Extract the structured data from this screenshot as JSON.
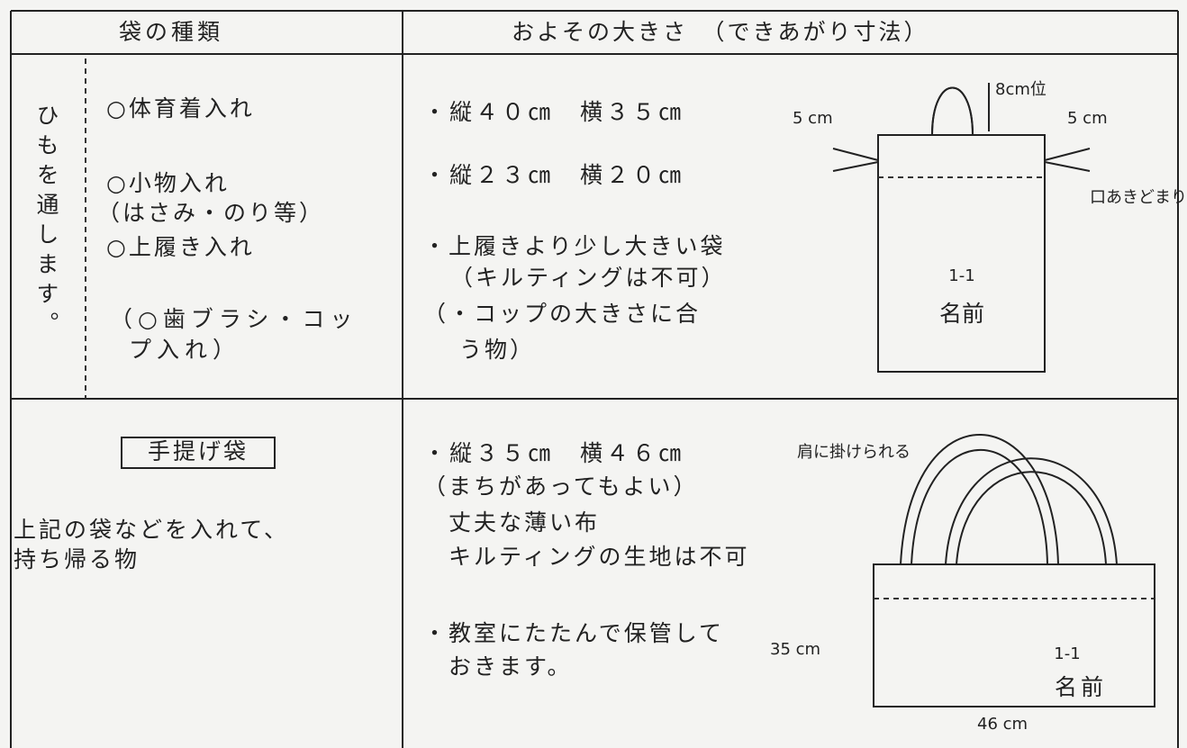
{
  "table": {
    "headers": [
      "袋の種類",
      "およその大きさ　（できあがり寸法）"
    ],
    "rows": [
      {
        "note": "ひもを通します。",
        "kinds": [
          "○体育着入れ",
          "○小物入れ",
          "（はさみ・のり等）",
          "○上履き入れ",
          "（○歯ブラシ・コッ",
          "プ入れ）"
        ],
        "sizes": [
          "・縦４０㎝　横３５㎝",
          "・縦２３㎝　横２０㎝",
          "・上履きより少し大きい袋",
          "（キルティングは不可）",
          "（・コップの大きさに合",
          "う物）"
        ],
        "diagram": {
          "handle": "8cm位",
          "left": "5 cm",
          "right": "5 cm",
          "opening": "口あきどまり",
          "class": "1-1",
          "name": "名前"
        }
      },
      {
        "kind_box": "手提げ袋",
        "kinds": [
          "上記の袋などを入れて、",
          "持ち帰る物"
        ],
        "sizes": [
          "・縦３５㎝　横４６㎝",
          "（まちがあってもよい）",
          "丈夫な薄い布",
          "キルティングの生地は不可",
          "・教室にたたんで保管して",
          "おきます。"
        ],
        "diagram": {
          "shoulder": "肩に掛けられる",
          "height": "35 cm",
          "width": "46 cm",
          "class": "1-1",
          "name": "名前"
        }
      }
    ]
  }
}
